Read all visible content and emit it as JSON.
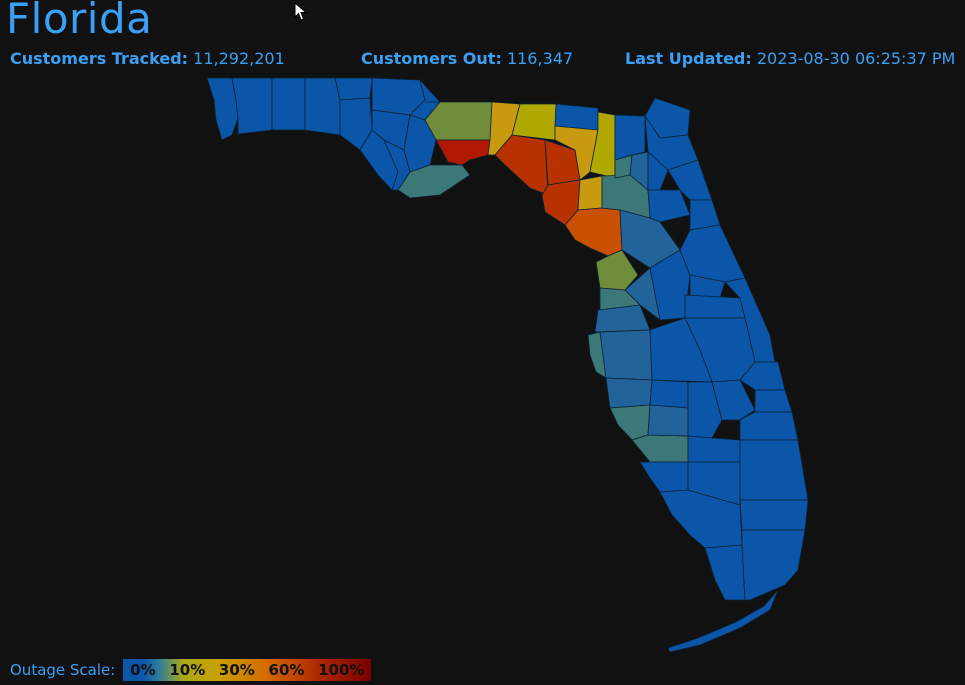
{
  "header": {
    "title": "Florida",
    "tracked_label": "Customers Tracked:",
    "tracked_value": "11,292,201",
    "out_label": "Customers Out:",
    "out_value": "116,347",
    "updated_label": "Last Updated:",
    "updated_value": "2023-08-30 06:25:37 PM"
  },
  "legend": {
    "label": "Outage Scale:",
    "stops": [
      "0%",
      "10%",
      "30%",
      "60%",
      "100%"
    ]
  },
  "colors": {
    "background": "#111111",
    "text_accent": "#3aa0f5",
    "outage_0": "#0b56a8",
    "outage_low": "#22649a",
    "outage_teal": "#3c7878",
    "outage_olive": "#6e8c3a",
    "outage_yellow": "#b0a800",
    "outage_gold": "#c89a10",
    "outage_orange": "#c85000",
    "outage_red_orange": "#b83200",
    "outage_red": "#b01800"
  }
}
